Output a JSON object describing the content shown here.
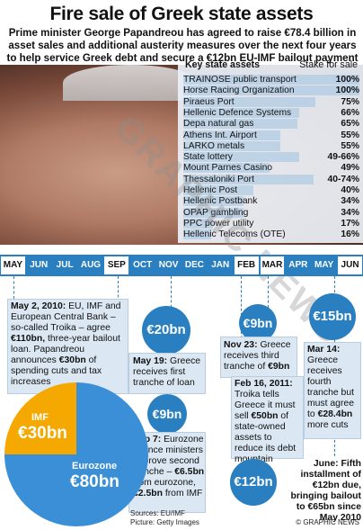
{
  "title": "Fire sale of Greek state assets",
  "subtitle": "Prime minister George Papandreou has agreed to raise €78.4 billion in asset sales and additional austerity measures over the next four years to help service Greek debt and secure a €12bn EU-IMF bailout payment",
  "table": {
    "header_left": "Key state assets",
    "header_right": "Stake for sale",
    "rows": [
      {
        "name": "TRAINOSE public transport",
        "value": "100%",
        "pct": 100
      },
      {
        "name": "Horse Racing Organization",
        "value": "100%",
        "pct": 100
      },
      {
        "name": "Piraeus Port",
        "value": "75%",
        "pct": 75
      },
      {
        "name": "Hellenic Defence Systems",
        "value": "66%",
        "pct": 66
      },
      {
        "name": "Depa natural gas",
        "value": "65%",
        "pct": 65
      },
      {
        "name": "Athens Int. Airport",
        "value": "55%",
        "pct": 55
      },
      {
        "name": "LARKO  metals",
        "value": "55%",
        "pct": 55
      },
      {
        "name": "State lottery",
        "value": "49-66%",
        "pct": 66
      },
      {
        "name": "Mount Parnes Casino",
        "value": "49%",
        "pct": 49
      },
      {
        "name": "Thessaloniki Port",
        "value": "40-74%",
        "pct": 74
      },
      {
        "name": "Hellenic Post",
        "value": "40%",
        "pct": 40
      },
      {
        "name": "Hellenic Postbank",
        "value": "34%",
        "pct": 34
      },
      {
        "name": "OPAP gambling",
        "value": "34%",
        "pct": 34
      },
      {
        "name": "PPC power utility",
        "value": "17%",
        "pct": 17
      },
      {
        "name": "Hellenic Telecoms (OTE)",
        "value": "16%",
        "pct": 16
      }
    ]
  },
  "months": [
    "MAY",
    "JUN",
    "JUL",
    "AUG",
    "SEP",
    "OCT",
    "NOV",
    "DEC",
    "JAN",
    "FEB",
    "MAR",
    "APR",
    "MAY",
    "JUN"
  ],
  "events": {
    "may2": {
      "date": "May 2, 2010:",
      "text1": "EU, IMF and European Central Bank – so-called Troika – agree",
      "bold1": "€110bn,",
      "text2": "three-year bailout loan. Papandreou announces",
      "bold2": "€30bn",
      "text3": "of spending cuts and tax increases"
    },
    "may19": {
      "amount": "€20bn",
      "date": "May 19:",
      "text": "Greece receives first tranche of loan"
    },
    "sep7": {
      "amount": "€9bn",
      "date": "Sep 7:",
      "text1": "Eurozone finance ministers approve second tranche –",
      "bold1": "€6.5bn",
      "text2": "from eurozone,",
      "bold2": "€2.5bn",
      "text3": "from IMF"
    },
    "nov23": {
      "amount": "€9bn",
      "date": "Nov 23:",
      "text1": "Greece receives third tranche of",
      "bold1": "€9bn"
    },
    "feb16": {
      "date": "Feb 16, 2011:",
      "text1": "Troika tells Greece it must sell",
      "bold1": "€50bn",
      "text2": "of state-owned assets to reduce its debt mountain"
    },
    "mar14": {
      "amount": "€15bn",
      "date": "Mar 14:",
      "text1": "Greece receives fourth tranche but must agree to",
      "bold1": "€28.4bn",
      "text2": "more cuts"
    },
    "june": {
      "amount": "€12bn",
      "text": "June: Fifth installment of €12bn due, bringing bailout to €65bn since May 2010"
    }
  },
  "pie": {
    "imf_label": "IMF",
    "imf_value": "€30bn",
    "imf_amount": 30,
    "euro_label": "Eurozone",
    "euro_value": "€80bn",
    "euro_amount": 80,
    "colors": {
      "imf": "#f5a800",
      "eurozone": "#3a8fd6"
    }
  },
  "sources": "Sources: EU/IMF",
  "picture": "Picture: Getty Images",
  "credit": "© GRAPHIC NEWS",
  "watermark": "GRAPHIC NEWS"
}
